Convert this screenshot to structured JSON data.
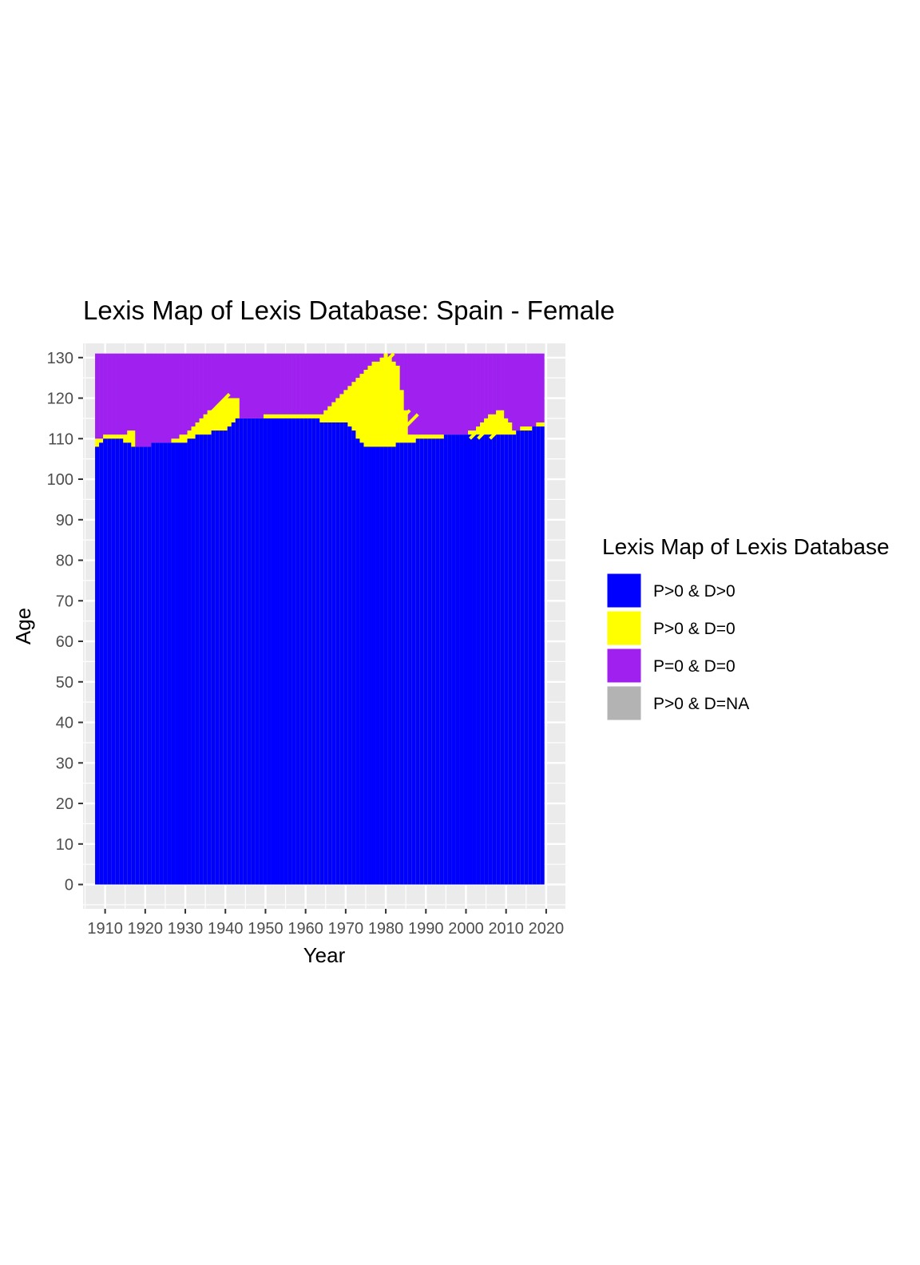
{
  "chart_data": {
    "type": "heatmap",
    "title": "Lexis Map of Lexis Database: Spain - Female",
    "xlabel": "Year",
    "ylabel": "Age",
    "xlim": [
      1904.5,
      2024.8
    ],
    "ylim": [
      -6,
      133.5
    ],
    "x_ticks": [
      1910,
      1920,
      1930,
      1940,
      1950,
      1960,
      1970,
      1980,
      1990,
      2000,
      2010,
      2020
    ],
    "y_ticks": [
      0,
      10,
      20,
      30,
      40,
      50,
      60,
      70,
      80,
      90,
      100,
      110,
      120,
      130
    ],
    "grid": true,
    "legend": {
      "title": "Lexis Map of Lexis Database",
      "position": "right",
      "items": [
        {
          "label": "P>0 & D>0",
          "color": "#0000ff"
        },
        {
          "label": "P>0 & D=0",
          "color": "#ffff00"
        },
        {
          "label": "P=0 & D=0",
          "color": "#a020f0"
        },
        {
          "label": "P>0 & D=NA",
          "color": "#b3b3b3"
        }
      ]
    },
    "years": [
      1908,
      2019
    ],
    "max_age": 130,
    "boundary_P_positive": [
      [
        1908,
        110
      ],
      [
        1911,
        111
      ],
      [
        1915,
        111
      ],
      [
        1917,
        112
      ],
      [
        1918,
        108
      ],
      [
        1925,
        109
      ],
      [
        1930,
        111
      ],
      [
        1933,
        114
      ],
      [
        1940,
        120
      ],
      [
        1943,
        120
      ],
      [
        1944,
        115
      ],
      [
        1955,
        116
      ],
      [
        1960,
        116
      ],
      [
        1964,
        116
      ],
      [
        1968,
        120
      ],
      [
        1975,
        127
      ],
      [
        1980,
        131
      ],
      [
        1983,
        128
      ],
      [
        1986,
        111
      ],
      [
        1990,
        111
      ],
      [
        2000,
        111
      ],
      [
        2003,
        113
      ],
      [
        2006,
        116
      ],
      [
        2009,
        117
      ],
      [
        2012,
        112
      ],
      [
        2016,
        113
      ],
      [
        2019,
        114
      ]
    ],
    "boundary_D_positive": [
      [
        1908,
        108
      ],
      [
        1910,
        110
      ],
      [
        1913,
        110
      ],
      [
        1918,
        108
      ],
      [
        1925,
        109
      ],
      [
        1930,
        109
      ],
      [
        1933,
        111
      ],
      [
        1940,
        112
      ],
      [
        1943,
        115
      ],
      [
        1955,
        115
      ],
      [
        1962,
        115
      ],
      [
        1964,
        114
      ],
      [
        1970,
        114
      ],
      [
        1975,
        108
      ],
      [
        1980,
        108
      ],
      [
        1990,
        110
      ],
      [
        2000,
        111
      ],
      [
        2010,
        111
      ],
      [
        2015,
        112
      ],
      [
        2019,
        113
      ]
    ],
    "diagonal_yellow_runs": [
      [
        1930,
        110,
        1941,
        121
      ],
      [
        1966,
        115,
        1982,
        131
      ],
      [
        1976,
        109,
        1984,
        117
      ],
      [
        1978,
        109,
        1986,
        117
      ],
      [
        1981,
        109,
        1988,
        116
      ],
      [
        2001,
        110,
        2006,
        115
      ],
      [
        2003,
        110,
        2008,
        115
      ],
      [
        2006,
        110,
        2010,
        114
      ]
    ]
  }
}
